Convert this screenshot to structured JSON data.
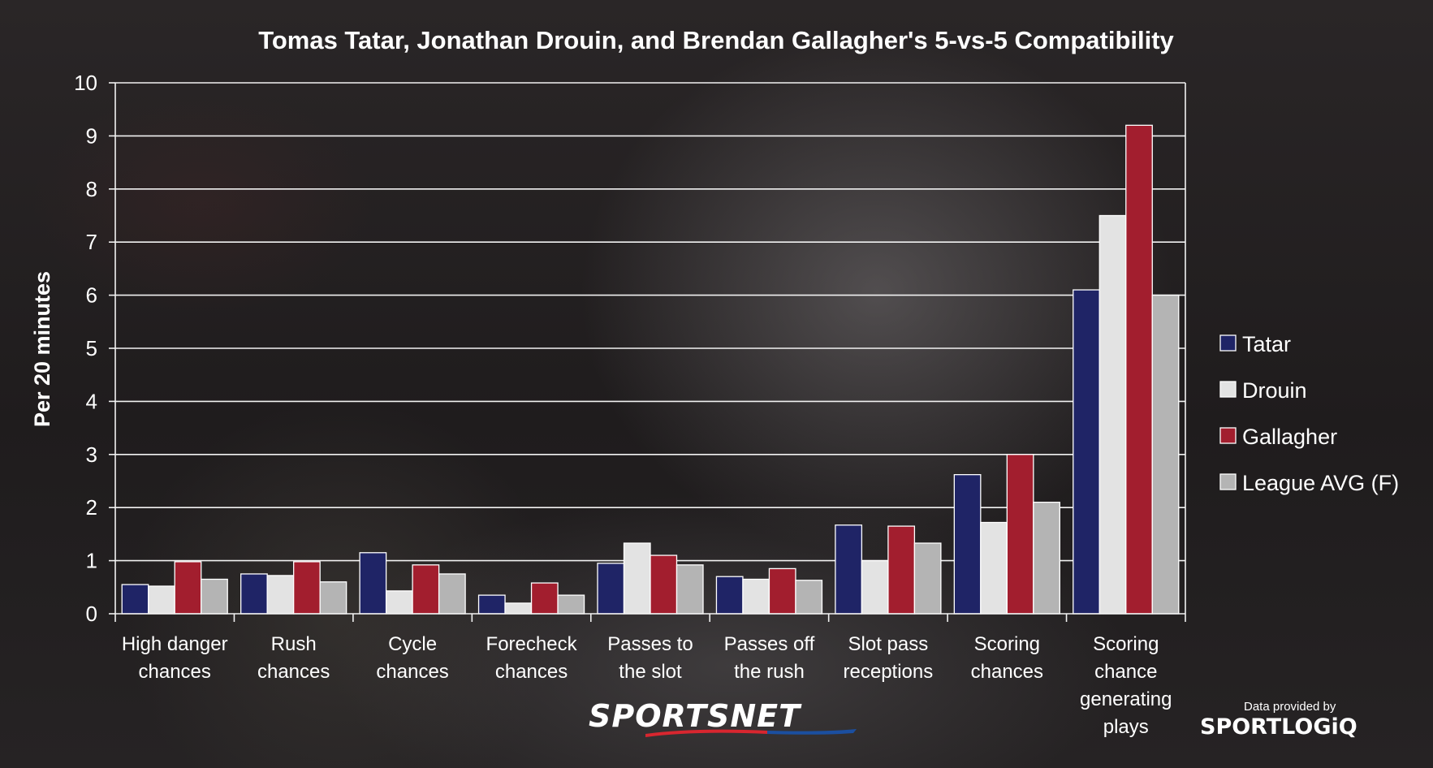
{
  "chart_data": {
    "type": "bar",
    "title": "Tomas Tatar, Jonathan Drouin, and Brendan Gallagher's 5-vs-5 Compatibility",
    "ylabel": "Per 20 minutes",
    "xlabel": "",
    "ylim": [
      0,
      10
    ],
    "yticks": [
      "0",
      "1",
      "2",
      "3",
      "4",
      "5",
      "6",
      "7",
      "8",
      "9",
      "10"
    ],
    "grid": true,
    "legend_position": "right",
    "categories": [
      [
        "High danger",
        "chances"
      ],
      [
        "Rush",
        "chances"
      ],
      [
        "Cycle",
        "chances"
      ],
      [
        "Forecheck",
        "chances"
      ],
      [
        "Passes to",
        "the slot"
      ],
      [
        "Passes off",
        "the rush"
      ],
      [
        "Slot pass",
        "receptions"
      ],
      [
        "Scoring",
        "chances"
      ],
      [
        "Scoring",
        "chance",
        "generating",
        "plays"
      ]
    ],
    "series": [
      {
        "name": "Tatar",
        "color": "#1f2466",
        "values": [
          0.55,
          0.75,
          1.15,
          0.35,
          0.95,
          0.7,
          1.67,
          2.62,
          6.1
        ]
      },
      {
        "name": "Drouin",
        "color": "#e3e3e3",
        "values": [
          0.52,
          0.72,
          0.43,
          0.2,
          1.33,
          0.65,
          1.0,
          1.72,
          7.5
        ]
      },
      {
        "name": "Gallagher",
        "color": "#a21e2e",
        "values": [
          0.98,
          0.98,
          0.92,
          0.58,
          1.1,
          0.85,
          1.65,
          3.0,
          9.2
        ]
      },
      {
        "name": "League AVG (F)",
        "color": "#b4b4b4",
        "values": [
          0.65,
          0.6,
          0.75,
          0.35,
          0.92,
          0.63,
          1.33,
          2.1,
          6.0
        ]
      }
    ]
  },
  "brand": {
    "logo_text": "SPORTSNET",
    "credit_label": "Data provided by",
    "credit_logo": "SPORTLOGiQ"
  }
}
